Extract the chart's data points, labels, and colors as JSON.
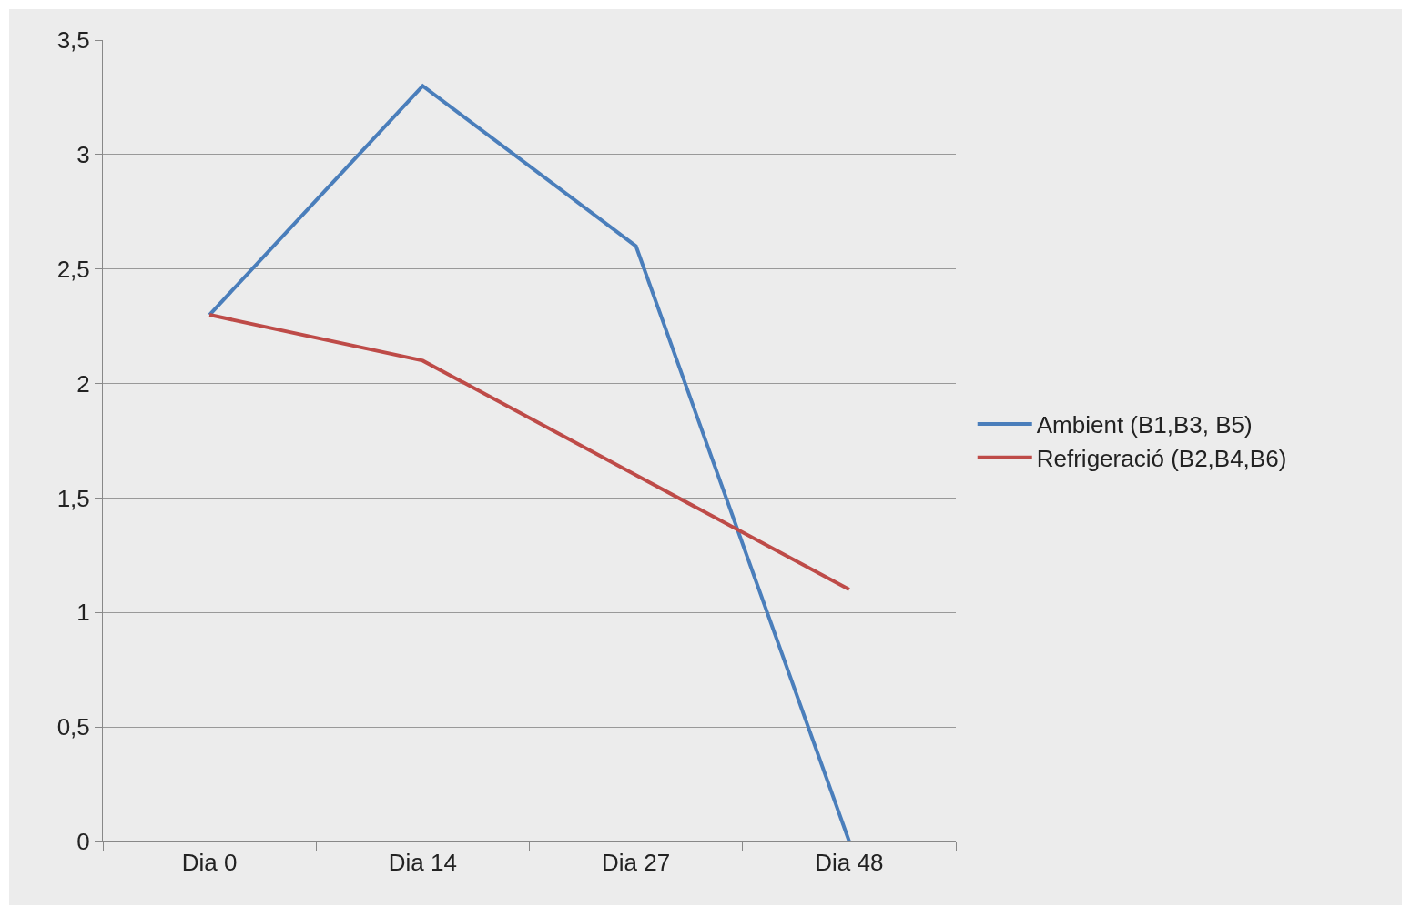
{
  "chart_data": {
    "type": "line",
    "categories": [
      "Dia 0",
      "Dia 14",
      "Dia 27",
      "Dia 48"
    ],
    "series": [
      {
        "name": "Ambient (B1,B3, B5)",
        "color": "#4a7ebb",
        "values": [
          2.3,
          3.3,
          2.6,
          0
        ]
      },
      {
        "name": "Refrigeració (B2,B4,B6)",
        "color": "#be4b48",
        "values": [
          2.3,
          2.1,
          1.6,
          1.1
        ]
      }
    ],
    "ylim": [
      0,
      3.5
    ],
    "yticks": [
      {
        "value": 0,
        "label": "0"
      },
      {
        "value": 0.5,
        "label": "0,5"
      },
      {
        "value": 1,
        "label": "1"
      },
      {
        "value": 1.5,
        "label": "1,5"
      },
      {
        "value": 2,
        "label": "2"
      },
      {
        "value": 2.5,
        "label": "2,5"
      },
      {
        "value": 3,
        "label": "3"
      },
      {
        "value": 3.5,
        "label": "3,5"
      }
    ],
    "grid": "y",
    "legend": "right",
    "marker": "none",
    "line_style": "solid"
  }
}
